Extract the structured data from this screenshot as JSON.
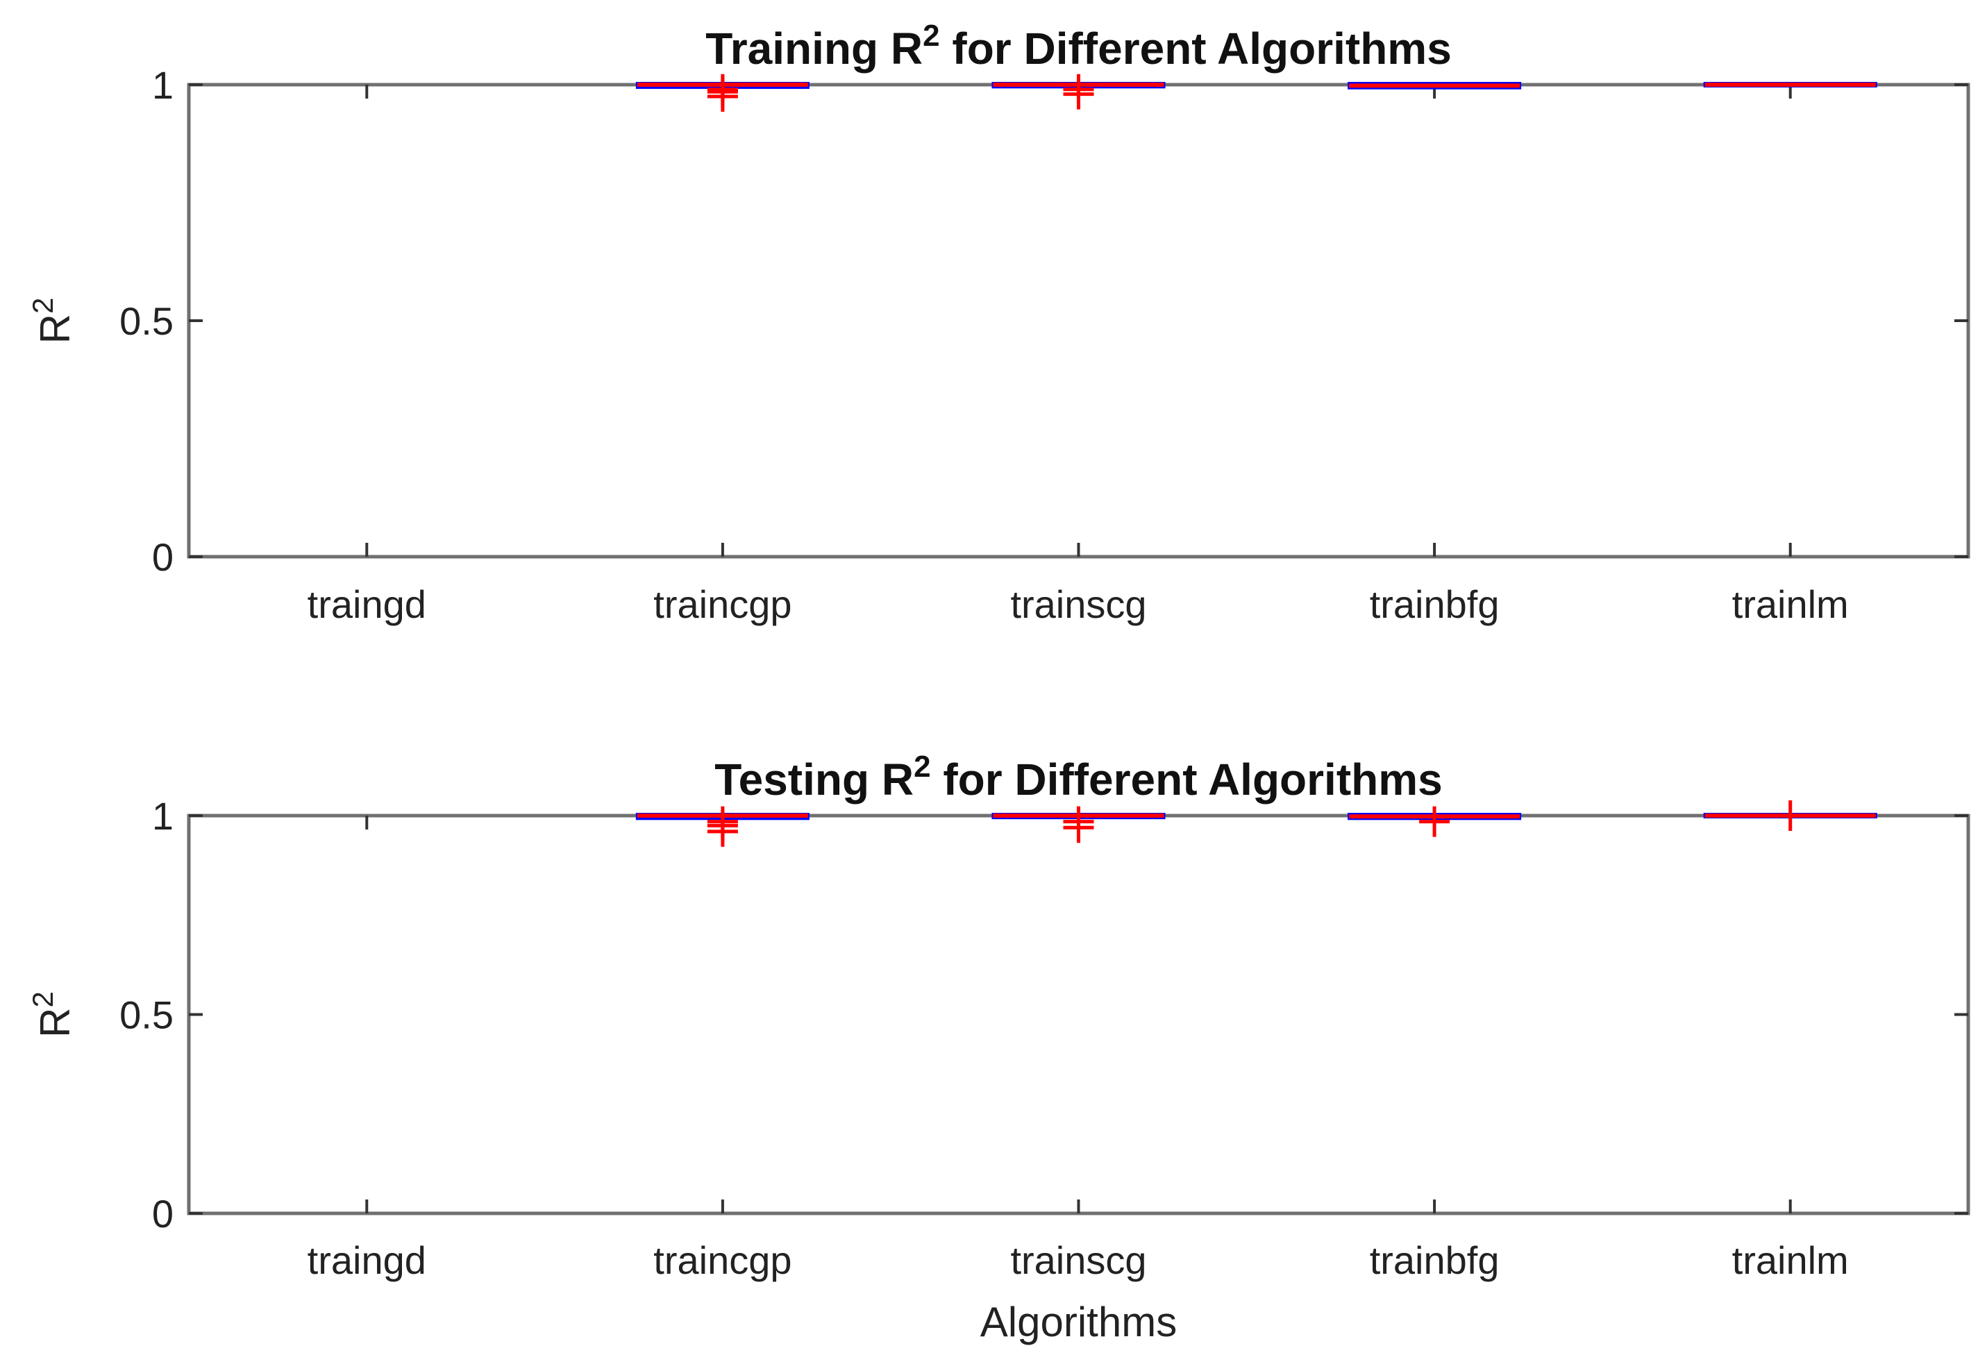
{
  "chart_data": [
    {
      "type": "box",
      "title": "Training R",
      "title_superscript": "2",
      "title_rest": " for Different Algorithms",
      "ylabel": "R",
      "ylabel_superscript": "2",
      "xlabel": "",
      "categories": [
        "traingd",
        "traincgp",
        "trainscg",
        "trainbfg",
        "trainlm"
      ],
      "yticks": [
        "0",
        "0.5",
        "1"
      ],
      "ylim": [
        0,
        1
      ],
      "boxes": [
        {
          "category": "traingd",
          "q1": null,
          "median": null,
          "q3": null,
          "outliers": []
        },
        {
          "category": "traincgp",
          "q1": 0.997,
          "median": 1.0,
          "q3": 1.0,
          "outliers": [
            0.975,
            0.985,
            0.99
          ]
        },
        {
          "category": "trainscg",
          "q1": 0.998,
          "median": 1.0,
          "q3": 1.0,
          "outliers": [
            0.98,
            0.99
          ]
        },
        {
          "category": "trainbfg",
          "q1": 0.996,
          "median": 0.998,
          "q3": 1.0,
          "outliers": []
        },
        {
          "category": "trainlm",
          "q1": 1.0,
          "median": 1.0,
          "q3": 1.0,
          "outliers": []
        }
      ],
      "colors": {
        "median": "#ff0000",
        "box": "#0000ff",
        "outlier": "#ff0000",
        "axis": "#707070"
      }
    },
    {
      "type": "box",
      "title": "Testing R",
      "title_superscript": "2",
      "title_rest": " for Different Algorithms",
      "ylabel": "R",
      "ylabel_superscript": "2",
      "xlabel": "Algorithms",
      "categories": [
        "traingd",
        "traincgp",
        "trainscg",
        "trainbfg",
        "trainlm"
      ],
      "yticks": [
        "0",
        "0.5",
        "1"
      ],
      "ylim": [
        0,
        1
      ],
      "boxes": [
        {
          "category": "traingd",
          "q1": null,
          "median": null,
          "q3": null,
          "outliers": []
        },
        {
          "category": "traincgp",
          "q1": 0.996,
          "median": 1.0,
          "q3": 1.0,
          "outliers": [
            0.96,
            0.975,
            0.985
          ]
        },
        {
          "category": "trainscg",
          "q1": 0.998,
          "median": 1.0,
          "q3": 1.0,
          "outliers": [
            0.97,
            0.985
          ]
        },
        {
          "category": "trainbfg",
          "q1": 0.996,
          "median": 0.998,
          "q3": 1.0,
          "outliers": [
            0.985
          ]
        },
        {
          "category": "trainlm",
          "q1": 1.0,
          "median": 1.0,
          "q3": 1.0,
          "outliers": [
            1.0
          ]
        }
      ],
      "colors": {
        "median": "#ff0000",
        "box": "#0000ff",
        "outlier": "#ff0000",
        "axis": "#707070"
      }
    }
  ]
}
